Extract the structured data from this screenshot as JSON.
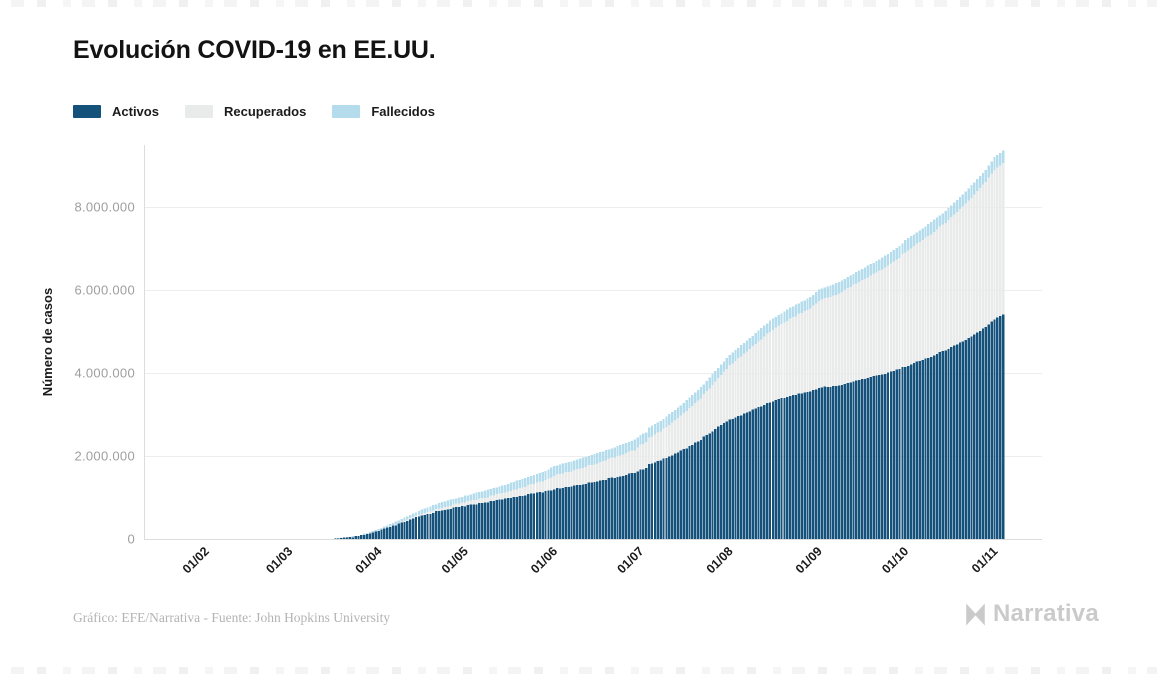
{
  "page": {
    "title": "Evolución COVID-19 en EE.UU.",
    "credit": "Gráfico: EFE/Narrativa - Fuente: John Hopkins University",
    "brand": "Narrativa"
  },
  "legend": {
    "items": [
      {
        "label": "Activos",
        "color": "#14517b"
      },
      {
        "label": "Recuperados",
        "color": "#e9eaea"
      },
      {
        "label": "Fallecidos",
        "color": "#b5dcec"
      }
    ]
  },
  "chart_data": {
    "type": "bar",
    "stacked": true,
    "title": "Evolución COVID-19 en EE.UU.",
    "ylabel": "Número de casos",
    "xlabel": "",
    "grid": true,
    "legend_position": "top-left",
    "ylim": [
      0,
      9600000
    ],
    "y_ticks": [
      {
        "value": 0,
        "label": "0"
      },
      {
        "value": 2000000,
        "label": "2.000.000"
      },
      {
        "value": 4000000,
        "label": "4.000.000"
      },
      {
        "value": 6000000,
        "label": "6.000.000"
      },
      {
        "value": 8000000,
        "label": "8.000.000"
      }
    ],
    "x_ticks": [
      {
        "day": 10,
        "label": "01/02"
      },
      {
        "day": 39,
        "label": "01/03"
      },
      {
        "day": 70,
        "label": "01/04"
      },
      {
        "day": 100,
        "label": "01/05"
      },
      {
        "day": 131,
        "label": "01/06"
      },
      {
        "day": 161,
        "label": "01/07"
      },
      {
        "day": 192,
        "label": "01/08"
      },
      {
        "day": 223,
        "label": "01/09"
      },
      {
        "day": 253,
        "label": "01/10"
      },
      {
        "day": 284,
        "label": "01/11"
      }
    ],
    "days_total": 287,
    "series": [
      {
        "name": "Activos",
        "color": "#14517b",
        "anchors": [
          [
            0,
            0
          ],
          [
            39,
            100
          ],
          [
            49,
            1200
          ],
          [
            56,
            7000
          ],
          [
            63,
            60000
          ],
          [
            70,
            190000
          ],
          [
            77,
            360000
          ],
          [
            84,
            540000
          ],
          [
            91,
            680000
          ],
          [
            100,
            800000
          ],
          [
            107,
            880000
          ],
          [
            114,
            970000
          ],
          [
            121,
            1060000
          ],
          [
            128,
            1150000
          ],
          [
            131,
            1200000
          ],
          [
            138,
            1280000
          ],
          [
            145,
            1380000
          ],
          [
            152,
            1480000
          ],
          [
            159,
            1600000
          ],
          [
            161,
            1660000
          ],
          [
            163,
            1700000
          ],
          [
            164,
            1800000
          ],
          [
            168,
            1900000
          ],
          [
            175,
            2120000
          ],
          [
            182,
            2400000
          ],
          [
            189,
            2750000
          ],
          [
            192,
            2870000
          ],
          [
            199,
            3080000
          ],
          [
            206,
            3300000
          ],
          [
            213,
            3450000
          ],
          [
            220,
            3560000
          ],
          [
            223,
            3640000
          ],
          [
            230,
            3700000
          ],
          [
            237,
            3830000
          ],
          [
            244,
            3950000
          ],
          [
            251,
            4100000
          ],
          [
            253,
            4160000
          ],
          [
            260,
            4340000
          ],
          [
            267,
            4550000
          ],
          [
            274,
            4800000
          ],
          [
            281,
            5100000
          ],
          [
            284,
            5300000
          ],
          [
            287,
            5400000
          ]
        ]
      },
      {
        "name": "Recuperados",
        "color": "#e9eaea",
        "anchors": [
          [
            0,
            0
          ],
          [
            63,
            1000
          ],
          [
            70,
            10000
          ],
          [
            77,
            20000
          ],
          [
            84,
            40000
          ],
          [
            91,
            60000
          ],
          [
            100,
            90000
          ],
          [
            107,
            120000
          ],
          [
            114,
            150000
          ],
          [
            121,
            210000
          ],
          [
            128,
            270000
          ],
          [
            131,
            330000
          ],
          [
            138,
            380000
          ],
          [
            145,
            430000
          ],
          [
            152,
            490000
          ],
          [
            159,
            550000
          ],
          [
            161,
            600000
          ],
          [
            168,
            700000
          ],
          [
            175,
            850000
          ],
          [
            182,
            1000000
          ],
          [
            189,
            1200000
          ],
          [
            192,
            1310000
          ],
          [
            199,
            1500000
          ],
          [
            206,
            1700000
          ],
          [
            213,
            1860000
          ],
          [
            220,
            2000000
          ],
          [
            223,
            2100000
          ],
          [
            230,
            2220000
          ],
          [
            237,
            2370000
          ],
          [
            244,
            2510000
          ],
          [
            251,
            2680000
          ],
          [
            253,
            2760000
          ],
          [
            260,
            2910000
          ],
          [
            267,
            3070000
          ],
          [
            274,
            3280000
          ],
          [
            281,
            3500000
          ],
          [
            284,
            3600000
          ],
          [
            287,
            3650000
          ]
        ]
      },
      {
        "name": "Fallecidos",
        "color": "#b5dcec",
        "anchors": [
          [
            0,
            0
          ],
          [
            56,
            300
          ],
          [
            63,
            2000
          ],
          [
            70,
            25000
          ],
          [
            77,
            50000
          ],
          [
            84,
            80000
          ],
          [
            91,
            105000
          ],
          [
            100,
            130000
          ],
          [
            114,
            165000
          ],
          [
            131,
            205000
          ],
          [
            145,
            215000
          ],
          [
            161,
            225000
          ],
          [
            175,
            232000
          ],
          [
            192,
            238000
          ],
          [
            206,
            242000
          ],
          [
            223,
            248000
          ],
          [
            237,
            252000
          ],
          [
            253,
            258000
          ],
          [
            267,
            266000
          ],
          [
            281,
            278000
          ],
          [
            284,
            282000
          ],
          [
            287,
            290000
          ]
        ]
      }
    ]
  }
}
